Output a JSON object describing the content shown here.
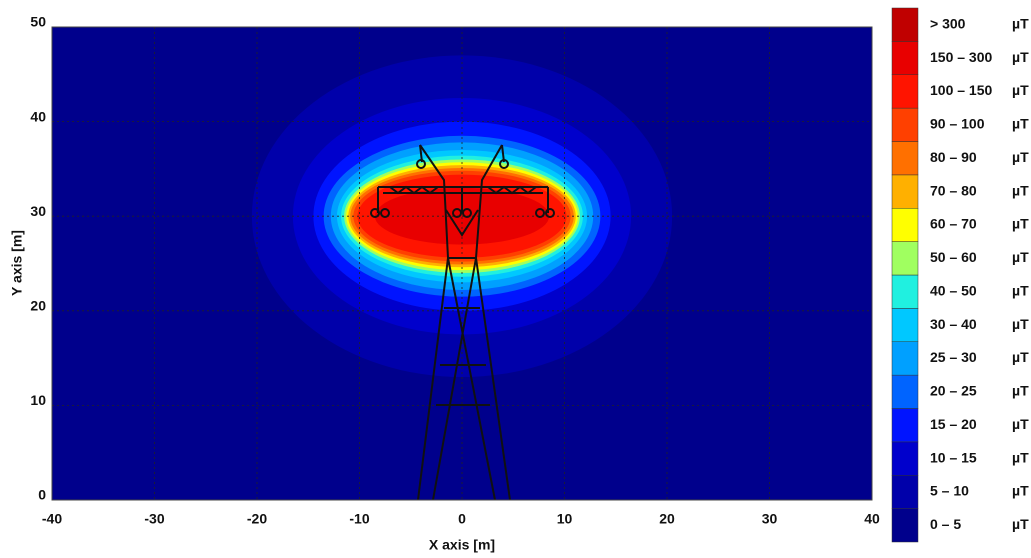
{
  "chart_data": {
    "type": "contour",
    "xlabel": "X axis [m]",
    "ylabel": "Y axis [m]",
    "xlim": [
      -40,
      40
    ],
    "ylim": [
      0,
      50
    ],
    "xticks": [
      -40,
      -30,
      -20,
      -10,
      0,
      10,
      20,
      30,
      40
    ],
    "yticks": [
      0,
      10,
      20,
      30,
      40,
      50
    ],
    "grid": true,
    "center": [
      0,
      30
    ],
    "unit": "µT",
    "bands": [
      {
        "label": "0 – 5",
        "color": "#00008c"
      },
      {
        "label": "5 – 10",
        "color": "#0000aa",
        "extent": [
          20.5,
          17
        ]
      },
      {
        "label": "10 – 15",
        "color": "#0000cc",
        "extent": [
          16.5,
          12.5
        ]
      },
      {
        "label": "15 – 20",
        "color": "#0014ff",
        "extent": [
          14.5,
          10
        ]
      },
      {
        "label": "20 – 25",
        "color": "#0064ff",
        "extent": [
          13.5,
          8.5
        ]
      },
      {
        "label": "25 – 30",
        "color": "#00a0ff",
        "extent": [
          12.8,
          7.8
        ]
      },
      {
        "label": "30 – 40",
        "color": "#00c8ff",
        "extent": [
          12.2,
          7
        ]
      },
      {
        "label": "40 – 50",
        "color": "#20f0e0",
        "extent": [
          11.8,
          6.4
        ]
      },
      {
        "label": "50 – 60",
        "color": "#a0ff60",
        "extent": [
          11.5,
          6
        ]
      },
      {
        "label": "60 – 70",
        "color": "#ffff00",
        "extent": [
          11.3,
          5.7
        ]
      },
      {
        "label": "70 – 80",
        "color": "#ffb000",
        "extent": [
          11.1,
          5.4
        ]
      },
      {
        "label": "80 – 90",
        "color": "#ff7000",
        "extent": [
          10.9,
          5.1
        ]
      },
      {
        "label": "90 – 100",
        "color": "#ff4000",
        "extent": [
          10.6,
          4.8
        ]
      },
      {
        "label": "100 – 150",
        "color": "#ff1400",
        "extent": [
          10.2,
          4.4
        ]
      },
      {
        "label": "150 – 300",
        "color": "#e80000",
        "extent": [
          8.5,
          3
        ]
      },
      {
        "label": "> 300",
        "color": "#c00000"
      }
    ]
  }
}
